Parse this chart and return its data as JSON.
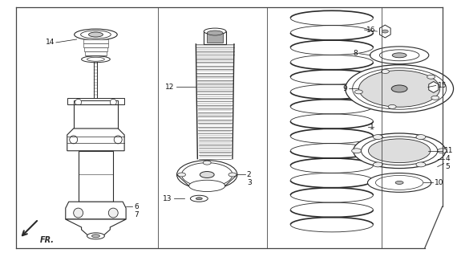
{
  "bg_color": "#ffffff",
  "line_color": "#2a2a2a",
  "border_color": "#444444",
  "fig_width": 5.7,
  "fig_height": 3.2,
  "dpi": 100,
  "fr_text": "FR."
}
